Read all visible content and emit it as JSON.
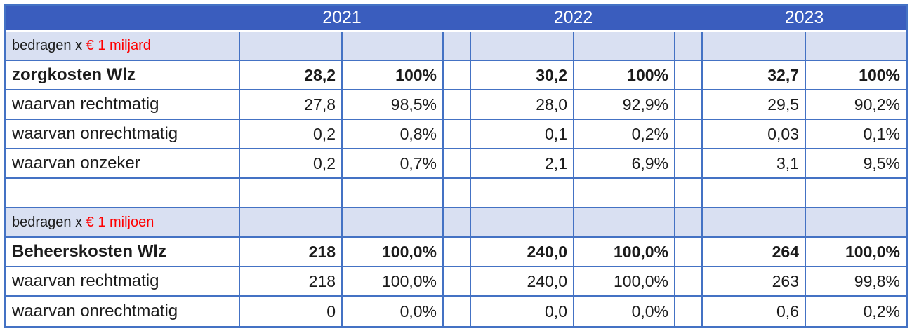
{
  "chart_data": {
    "type": "table",
    "years": [
      "2021",
      "2022",
      "2023"
    ],
    "column_pattern_per_year": [
      "bedrag",
      "percentage"
    ],
    "sections": [
      {
        "unit_prefix": "bedragen x ",
        "unit_highlight": "€ 1 miljard",
        "rows": [
          {
            "label": "zorgkosten Wlz",
            "bold": true,
            "values": [
              "28,2",
              "100%",
              "30,2",
              "100%",
              "32,7",
              "100%"
            ]
          },
          {
            "label": "waarvan rechtmatig",
            "bold": false,
            "values": [
              "27,8",
              "98,5%",
              "28,0",
              "92,9%",
              "29,5",
              "90,2%"
            ]
          },
          {
            "label": "waarvan onrechtmatig",
            "bold": false,
            "values": [
              "0,2",
              "0,8%",
              "0,1",
              "0,2%",
              "0,03",
              "0,1%"
            ]
          },
          {
            "label": "waarvan onzeker",
            "bold": false,
            "values": [
              "0,2",
              "0,7%",
              "2,1",
              "6,9%",
              "3,1",
              "9,5%"
            ]
          }
        ]
      },
      {
        "unit_prefix": "bedragen x ",
        "unit_highlight": "€ 1 miljoen",
        "rows": [
          {
            "label": "Beheerskosten Wlz",
            "bold": true,
            "values": [
              "218",
              "100,0%",
              "240,0",
              "100,0%",
              "264",
              "100,0%"
            ]
          },
          {
            "label": "waarvan rechtmatig",
            "bold": false,
            "values": [
              "218",
              "100,0%",
              "240,0",
              "100,0%",
              "263",
              "99,8%"
            ]
          },
          {
            "label": "waarvan onrechtmatig",
            "bold": false,
            "values": [
              "0",
              "0,0%",
              "0,0",
              "0,0%",
              "0,6",
              "0,2%"
            ]
          }
        ]
      }
    ],
    "colors": {
      "header_band": "#3A5DBE",
      "grid_border": "#4472C4",
      "unit_row_bg": "#D9E0F2",
      "unit_highlight_text": "#FF0000",
      "year_text": "#FFFFFF",
      "body_text": "#1B1B1B"
    }
  }
}
